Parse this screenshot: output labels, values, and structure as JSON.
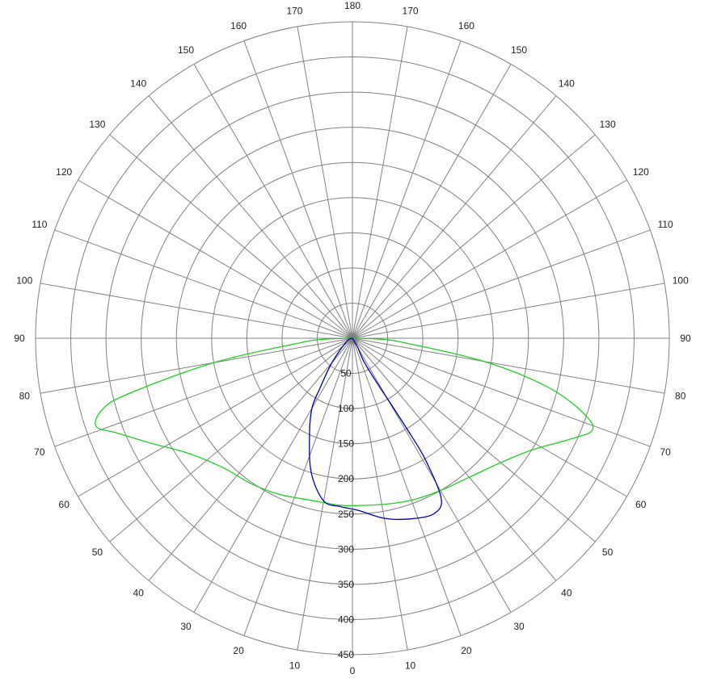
{
  "chart_data": {
    "type": "polar-line",
    "title": "",
    "angle_unit": "degrees",
    "angle_step": 10,
    "radial_range": [
      0,
      450
    ],
    "radial_ticks": [
      50,
      100,
      150,
      200,
      250,
      300,
      350,
      400,
      450
    ],
    "radial_tick_labels": [
      "50",
      "100",
      "150",
      "200",
      "250",
      "300",
      "350",
      "400",
      "450"
    ],
    "angle_labels": {
      "bottom": "0",
      "top": "180",
      "left": [
        "10",
        "20",
        "30",
        "40",
        "50",
        "60",
        "70",
        "80",
        "90",
        "100",
        "110",
        "120",
        "130",
        "140",
        "150",
        "160",
        "170"
      ],
      "right": [
        "10",
        "20",
        "30",
        "40",
        "50",
        "60",
        "70",
        "80",
        "90",
        "100",
        "110",
        "120",
        "130",
        "140",
        "150",
        "160",
        "170"
      ]
    },
    "grid": true,
    "series": [
      {
        "color": "#22cc22",
        "points": [
          {
            "angle": -90,
            "value": 0
          },
          {
            "angle": -88,
            "value": 40
          },
          {
            "angle": -85,
            "value": 75
          },
          {
            "angle": -80,
            "value": 200
          },
          {
            "angle": -76,
            "value": 330
          },
          {
            "angle": -74,
            "value": 370
          },
          {
            "angle": -71,
            "value": 385
          },
          {
            "angle": -68,
            "value": 360
          },
          {
            "angle": -62,
            "value": 320
          },
          {
            "angle": -55,
            "value": 285
          },
          {
            "angle": -45,
            "value": 260
          },
          {
            "angle": -35,
            "value": 252
          },
          {
            "angle": -25,
            "value": 245
          },
          {
            "angle": -15,
            "value": 238
          },
          {
            "angle": -5,
            "value": 238
          },
          {
            "angle": 0,
            "value": 238
          },
          {
            "angle": 10,
            "value": 240
          },
          {
            "angle": 20,
            "value": 245
          },
          {
            "angle": 30,
            "value": 250
          },
          {
            "angle": 40,
            "value": 258
          },
          {
            "angle": 50,
            "value": 275
          },
          {
            "angle": 58,
            "value": 300
          },
          {
            "angle": 65,
            "value": 340
          },
          {
            "angle": 69,
            "value": 365
          },
          {
            "angle": 72,
            "value": 345
          },
          {
            "angle": 76,
            "value": 285
          },
          {
            "angle": 80,
            "value": 190
          },
          {
            "angle": 85,
            "value": 75
          },
          {
            "angle": 88,
            "value": 40
          },
          {
            "angle": 90,
            "value": 0
          }
        ]
      },
      {
        "color": "#0000aa",
        "points": [
          {
            "angle": -90,
            "value": 0
          },
          {
            "angle": -60,
            "value": 10
          },
          {
            "angle": -40,
            "value": 45
          },
          {
            "angle": -33,
            "value": 85
          },
          {
            "angle": -30,
            "value": 115
          },
          {
            "angle": -24,
            "value": 150
          },
          {
            "angle": -17,
            "value": 200
          },
          {
            "angle": -10,
            "value": 235
          },
          {
            "angle": -4,
            "value": 240
          },
          {
            "angle": 2,
            "value": 245
          },
          {
            "angle": 10,
            "value": 260
          },
          {
            "angle": 18,
            "value": 270
          },
          {
            "angle": 25,
            "value": 275
          },
          {
            "angle": 29,
            "value": 260
          },
          {
            "angle": 31,
            "value": 200
          },
          {
            "angle": 31,
            "value": 150
          },
          {
            "angle": 30,
            "value": 100
          },
          {
            "angle": 28,
            "value": 60
          },
          {
            "angle": 26,
            "value": 35
          },
          {
            "angle": 30,
            "value": 15
          },
          {
            "angle": 90,
            "value": 0
          }
        ]
      }
    ]
  }
}
